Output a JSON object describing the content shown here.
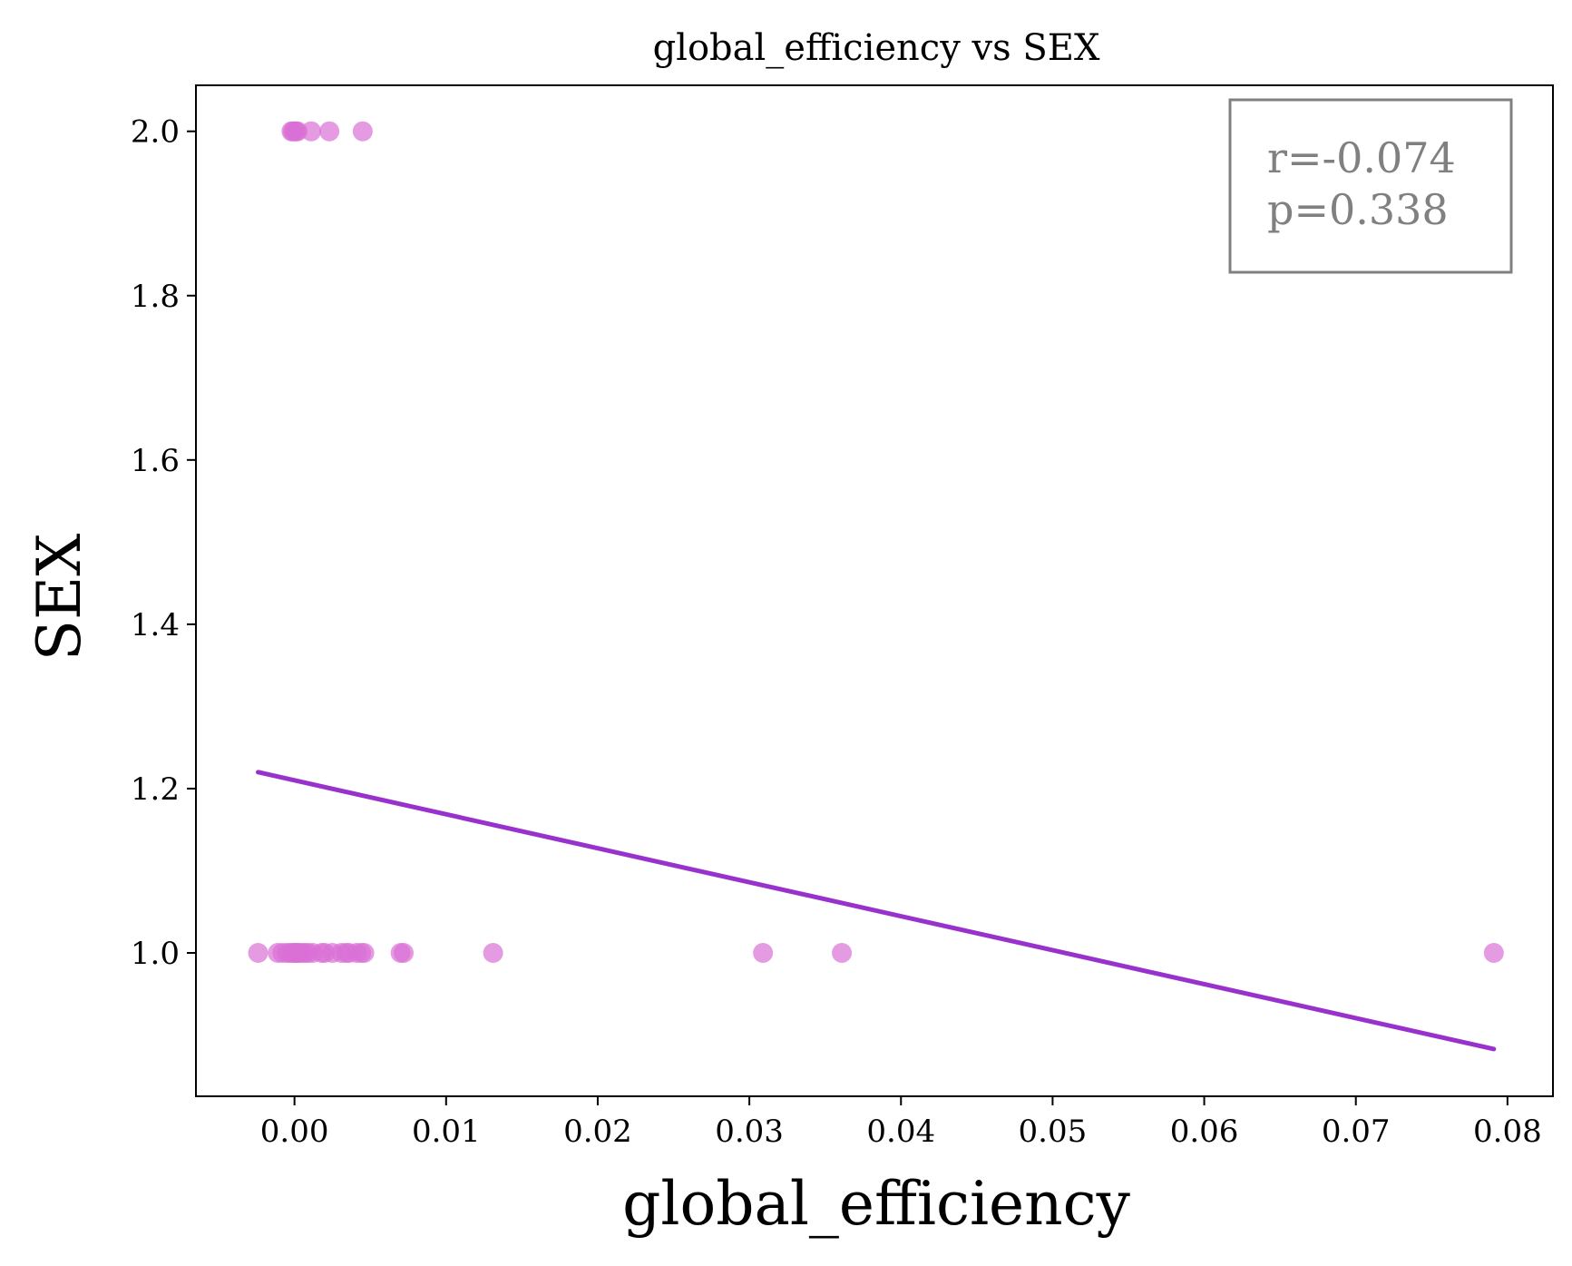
{
  "chart_data": {
    "type": "scatter",
    "title": "global_efficiency vs SEX",
    "xlabel": "global_efficiency",
    "ylabel": "SEX",
    "xlim": [
      -0.0065,
      0.083
    ],
    "ylim": [
      0.8255,
      2.056
    ],
    "x_ticks": [
      0.0,
      0.01,
      0.02,
      0.03,
      0.04,
      0.05,
      0.06,
      0.07,
      0.08
    ],
    "x_tick_labels": [
      "0.00",
      "0.01",
      "0.02",
      "0.03",
      "0.04",
      "0.05",
      "0.06",
      "0.07",
      "0.08"
    ],
    "y_ticks": [
      1.0,
      1.2,
      1.4,
      1.6,
      1.8,
      2.0
    ],
    "y_tick_labels": [
      "1.0",
      "1.2",
      "1.4",
      "1.6",
      "1.8",
      "2.0"
    ],
    "grid": false,
    "series": [
      {
        "kind": "points",
        "color": "#DA70D6",
        "x": [
          -0.0002,
          0.0,
          0.0001,
          0.0002,
          -0.0001,
          0.0011,
          0.0023,
          0.0045,
          -0.0024,
          -0.0011,
          -0.0008,
          -0.0005,
          -0.0003,
          -0.0001,
          0.0,
          0.0001,
          0.0002,
          0.0003,
          0.0005,
          0.0007,
          0.0009,
          0.0012,
          0.0018,
          0.002,
          0.0025,
          0.0031,
          0.0034,
          0.0036,
          0.0041,
          0.0044,
          0.0046,
          0.007,
          0.0072,
          0.0131,
          0.0309,
          0.0361,
          0.0791
        ],
        "y": [
          2.0,
          2.0,
          2.0,
          2.0,
          2.0,
          2.0,
          2.0,
          2.0,
          1.0,
          1.0,
          1.0,
          1.0,
          1.0,
          1.0,
          1.0,
          1.0,
          1.0,
          1.0,
          1.0,
          1.0,
          1.0,
          1.0,
          1.0,
          1.0,
          1.0,
          1.0,
          1.0,
          1.0,
          1.0,
          1.0,
          1.0,
          1.0,
          1.0,
          1.0,
          1.0,
          1.0,
          1.0
        ]
      },
      {
        "kind": "regression_line",
        "color": "#9932CC",
        "x": [
          -0.0024,
          0.0791
        ],
        "y": [
          1.22,
          0.883
        ]
      }
    ],
    "annotation": {
      "lines": [
        "r=-0.074",
        "p=0.338"
      ],
      "color": "#808080",
      "placement": "top-right"
    }
  }
}
